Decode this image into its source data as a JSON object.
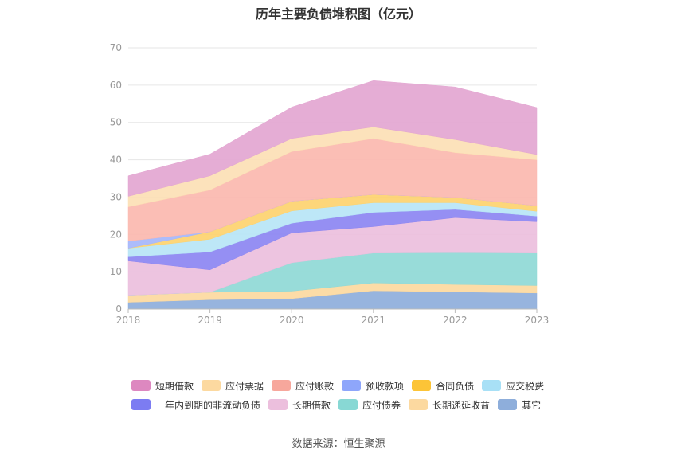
{
  "chart_data": {
    "type": "area",
    "stacked": true,
    "title": "历年主要负债堆积图（亿元）",
    "x": [
      "2018",
      "2019",
      "2020",
      "2021",
      "2022",
      "2023"
    ],
    "ylim": [
      0,
      70
    ],
    "yticks": [
      0,
      10,
      20,
      30,
      40,
      50,
      60,
      70
    ],
    "grid": true,
    "legend_position": "bottom",
    "series": [
      {
        "name": "其它",
        "color": "#8eaedb",
        "values": [
          1.8,
          2.5,
          2.8,
          4.9,
          4.6,
          4.3
        ]
      },
      {
        "name": "长期递延收益",
        "color": "#fcd9a0",
        "values": [
          1.9,
          2.0,
          2.0,
          2.1,
          2.0,
          2.0
        ]
      },
      {
        "name": "应付债券",
        "color": "#8fd9d6",
        "values": [
          0,
          0,
          7.6,
          8.0,
          8.5,
          8.7
        ]
      },
      {
        "name": "长期借款",
        "color": "#ecbfdd",
        "values": [
          9.2,
          6.0,
          8.0,
          7.1,
          9.4,
          8.4
        ]
      },
      {
        "name": "一年内到期的非流动负债",
        "color": "#8c86f2",
        "values": [
          1.1,
          4.8,
          2.6,
          3.8,
          2.2,
          1.5
        ]
      },
      {
        "name": "应交税费",
        "color": "#b7e5f6",
        "values": [
          2.3,
          3.4,
          3.3,
          2.6,
          1.8,
          1.3
        ]
      },
      {
        "name": "合同负债",
        "color": "#fdd36f",
        "values": [
          0,
          2.0,
          2.6,
          2.2,
          1.4,
          1.5
        ]
      },
      {
        "name": "预收款项",
        "color": "#a5b6fb",
        "values": [
          1.9,
          0,
          0,
          0,
          0,
          0
        ]
      },
      {
        "name": "应付账款",
        "color": "#fbb9af",
        "values": [
          9.2,
          11.2,
          13.3,
          15.0,
          12.0,
          12.3
        ]
      },
      {
        "name": "应付票据",
        "color": "#fce0b5",
        "values": [
          2.8,
          3.8,
          3.5,
          3.1,
          3.5,
          1.4
        ]
      },
      {
        "name": "短期借款",
        "color": "#e3a6d1",
        "values": [
          5.5,
          5.8,
          8.4,
          12.4,
          14.1,
          12.6
        ]
      }
    ]
  },
  "legend": {
    "rows": [
      [
        {
          "label": "短期借款",
          "color": "#dd88c0"
        },
        {
          "label": "应付票据",
          "color": "#fcd9a0"
        },
        {
          "label": "应付账款",
          "color": "#f7a79c"
        },
        {
          "label": "预收款项",
          "color": "#8ea6fb"
        },
        {
          "label": "合同负债",
          "color": "#fcc437"
        },
        {
          "label": "应交税费",
          "color": "#a8e0f6"
        }
      ],
      [
        {
          "label": "一年内到期的非流动负债",
          "color": "#7c7cf2"
        },
        {
          "label": "长期借款",
          "color": "#ecbfdd"
        },
        {
          "label": "应付债券",
          "color": "#88d8d4"
        },
        {
          "label": "长期递延收益",
          "color": "#fcd9a0"
        },
        {
          "label": "其它",
          "color": "#8eaedb"
        }
      ]
    ]
  },
  "source_note": "数据来源：恒生聚源"
}
